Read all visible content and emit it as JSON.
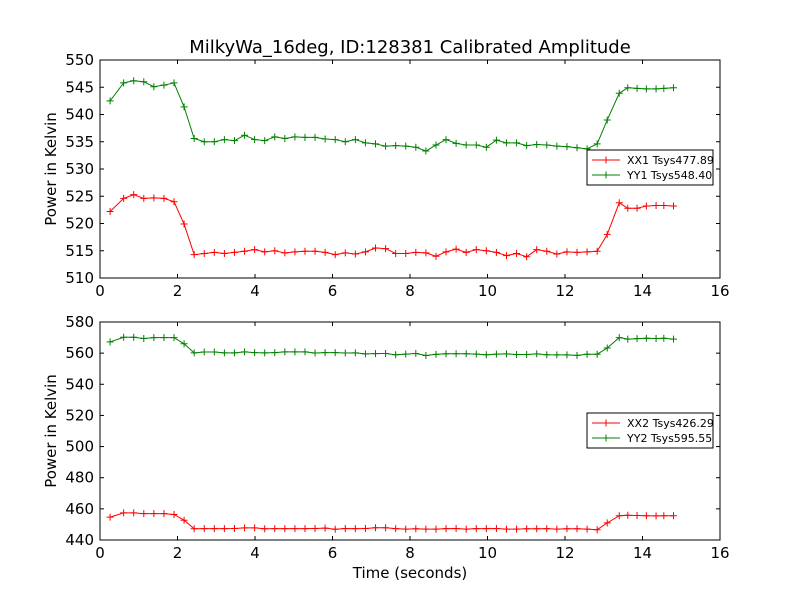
{
  "chart_data": [
    {
      "type": "line",
      "title": "MilkyWa_16deg, ID:128381 Calibrated Amplitude",
      "xlabel": "",
      "ylabel": "Power in Kelvin",
      "xlim": [
        0,
        16
      ],
      "ylim": [
        510,
        550
      ],
      "xticks": [
        "0",
        "2",
        "4",
        "6",
        "8",
        "10",
        "12",
        "14",
        "16"
      ],
      "yticks": [
        "510",
        "515",
        "520",
        "525",
        "530",
        "535",
        "540",
        "545",
        "550"
      ],
      "grid": false,
      "legend_position": "center-right",
      "x": [
        0.26,
        0.61,
        0.87,
        1.13,
        1.39,
        1.65,
        1.91,
        2.17,
        2.43,
        2.69,
        2.95,
        3.21,
        3.47,
        3.73,
        3.99,
        4.25,
        4.51,
        4.77,
        5.03,
        5.29,
        5.55,
        5.81,
        6.07,
        6.33,
        6.59,
        6.85,
        7.11,
        7.37,
        7.63,
        7.89,
        8.15,
        8.41,
        8.67,
        8.93,
        9.19,
        9.45,
        9.71,
        9.97,
        10.23,
        10.49,
        10.75,
        11.01,
        11.27,
        11.53,
        11.79,
        12.05,
        12.31,
        12.57,
        12.83,
        13.09,
        13.4,
        13.62,
        13.86,
        14.1,
        14.35,
        14.55,
        14.8
      ],
      "series": [
        {
          "name": "XX1 Tsys477.89",
          "color": "#ff0000",
          "values": [
            522.2,
            524.6,
            525.3,
            524.6,
            524.7,
            524.6,
            524.0,
            519.9,
            514.3,
            514.5,
            514.7,
            514.5,
            514.7,
            514.9,
            515.2,
            514.8,
            515.0,
            514.6,
            514.8,
            514.9,
            514.9,
            514.7,
            514.3,
            514.6,
            514.4,
            514.8,
            515.5,
            515.4,
            514.5,
            514.5,
            514.7,
            514.6,
            514.0,
            514.8,
            515.3,
            514.7,
            515.2,
            515.0,
            514.7,
            514.1,
            514.5,
            513.9,
            515.2,
            514.9,
            514.4,
            514.8,
            514.7,
            514.8,
            514.9,
            518.0,
            523.8,
            522.8,
            522.8,
            523.2,
            523.3,
            523.3,
            523.2
          ]
        },
        {
          "name": "YY1 Tsys548.40",
          "color": "#008000",
          "values": [
            542.5,
            545.8,
            546.2,
            546.0,
            545.1,
            545.4,
            545.8,
            541.4,
            535.6,
            535.0,
            535.0,
            535.4,
            535.2,
            536.2,
            535.4,
            535.2,
            535.9,
            535.6,
            535.9,
            535.8,
            535.8,
            535.5,
            535.4,
            535.0,
            535.4,
            534.8,
            534.6,
            534.2,
            534.3,
            534.2,
            534.0,
            533.3,
            534.4,
            535.4,
            534.7,
            534.4,
            534.4,
            534.0,
            535.3,
            534.8,
            534.8,
            534.3,
            534.5,
            534.4,
            534.2,
            534.1,
            533.9,
            533.7,
            534.6,
            539.0,
            543.9,
            544.9,
            544.8,
            544.7,
            544.7,
            544.8,
            544.9
          ]
        }
      ]
    },
    {
      "type": "line",
      "title": "",
      "xlabel": "Time (seconds)",
      "ylabel": "Power in Kelvin",
      "xlim": [
        0,
        16
      ],
      "ylim": [
        440,
        580
      ],
      "xticks": [
        "0",
        "2",
        "4",
        "6",
        "8",
        "10",
        "12",
        "14",
        "16"
      ],
      "yticks": [
        "440",
        "460",
        "480",
        "500",
        "520",
        "540",
        "560",
        "580"
      ],
      "grid": false,
      "legend_position": "center-right",
      "x": [
        0.26,
        0.61,
        0.87,
        1.13,
        1.39,
        1.65,
        1.91,
        2.17,
        2.43,
        2.69,
        2.95,
        3.21,
        3.47,
        3.73,
        3.99,
        4.25,
        4.51,
        4.77,
        5.03,
        5.29,
        5.55,
        5.81,
        6.07,
        6.33,
        6.59,
        6.85,
        7.11,
        7.37,
        7.63,
        7.89,
        8.15,
        8.41,
        8.67,
        8.93,
        9.19,
        9.45,
        9.71,
        9.97,
        10.23,
        10.49,
        10.75,
        11.01,
        11.27,
        11.53,
        11.79,
        12.05,
        12.31,
        12.57,
        12.83,
        13.09,
        13.4,
        13.62,
        13.86,
        14.1,
        14.35,
        14.55,
        14.8
      ],
      "series": [
        {
          "name": "XX2 Tsys426.29",
          "color": "#ff0000",
          "values": [
            454.7,
            457.4,
            457.4,
            456.9,
            456.9,
            456.9,
            456.4,
            452.7,
            447.2,
            447.3,
            447.3,
            447.3,
            447.4,
            447.8,
            447.8,
            447.2,
            447.3,
            447.3,
            447.3,
            447.3,
            447.4,
            447.6,
            446.9,
            447.4,
            447.3,
            447.4,
            447.9,
            447.9,
            447.3,
            447.0,
            447.2,
            447.0,
            447.0,
            447.3,
            447.4,
            447.0,
            447.3,
            447.3,
            447.4,
            447.0,
            447.0,
            447.2,
            447.2,
            447.3,
            447.0,
            447.2,
            447.2,
            447.0,
            446.6,
            451.0,
            455.6,
            455.9,
            455.7,
            455.6,
            455.5,
            455.6,
            455.6
          ]
        },
        {
          "name": "YY2 Tsys595.55",
          "color": "#008000",
          "values": [
            567.2,
            570.2,
            570.2,
            569.4,
            570.0,
            570.0,
            570.0,
            566.0,
            560.2,
            560.7,
            560.7,
            560.2,
            560.2,
            560.8,
            560.3,
            560.2,
            560.3,
            560.8,
            560.8,
            560.8,
            560.1,
            560.3,
            560.3,
            560.1,
            560.2,
            559.5,
            559.7,
            559.8,
            559.0,
            559.4,
            559.8,
            558.5,
            559.2,
            559.6,
            559.6,
            559.6,
            559.4,
            559.0,
            559.4,
            559.5,
            559.1,
            559.1,
            559.5,
            559.0,
            558.9,
            558.9,
            558.6,
            559.3,
            559.3,
            563.3,
            570.0,
            569.0,
            569.3,
            569.6,
            569.4,
            569.6,
            569.0
          ]
        }
      ]
    }
  ]
}
